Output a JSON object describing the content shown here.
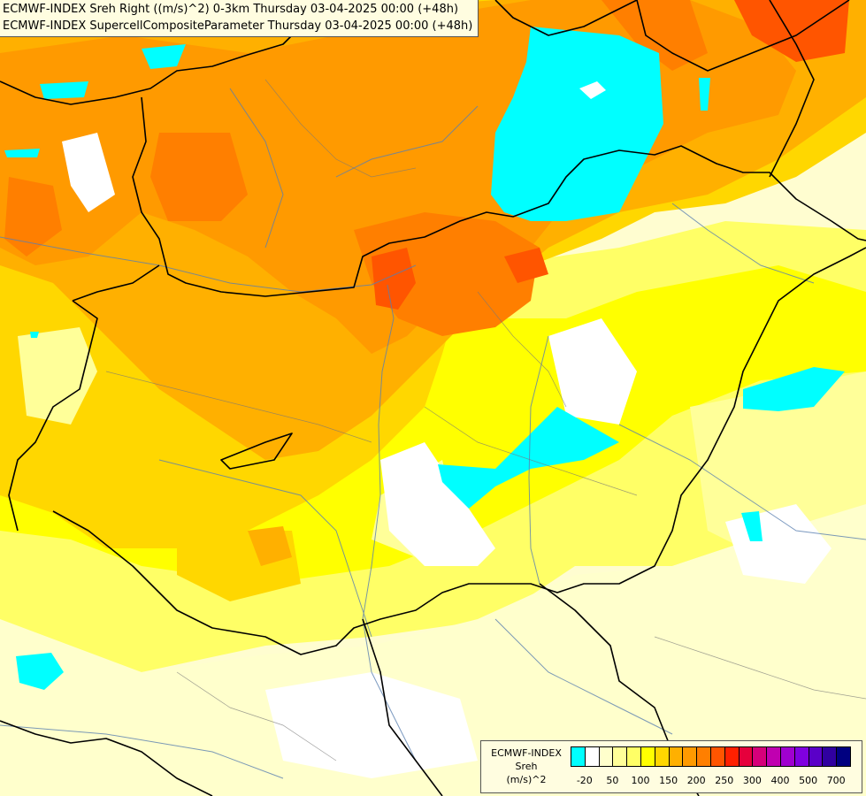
{
  "header": {
    "line1": "ECMWF-INDEX Sreh Right ((m/s)^2) 0-3km Thursday 03-04-2025 00:00 (+48h)",
    "line2": "ECMWF-INDEX SupercellCompositeParameter Thursday 03-04-2025 00:00 (+48h)"
  },
  "legend": {
    "title1": "ECMWF-INDEX",
    "title2": "Sreh",
    "unit": "(m/s)^2",
    "colors": [
      "#00ffff",
      "#ffffff",
      "#ffffcc",
      "#ffff99",
      "#ffff66",
      "#ffff00",
      "#ffd700",
      "#ffb000",
      "#ff9a00",
      "#ff7f00",
      "#ff5500",
      "#ff2000",
      "#e6003c",
      "#d6007a",
      "#c000b0",
      "#a000d0",
      "#8000e0",
      "#5a00c8",
      "#3000a0",
      "#000080"
    ],
    "ticks": [
      {
        "label": "-20",
        "index": 1
      },
      {
        "label": "50",
        "index": 3
      },
      {
        "label": "100",
        "index": 5
      },
      {
        "label": "150",
        "index": 7
      },
      {
        "label": "200",
        "index": 9
      },
      {
        "label": "250",
        "index": 11
      },
      {
        "label": "300",
        "index": 13
      },
      {
        "label": "400",
        "index": 15
      },
      {
        "label": "500",
        "index": 17
      },
      {
        "label": "700",
        "index": 19
      }
    ]
  }
}
